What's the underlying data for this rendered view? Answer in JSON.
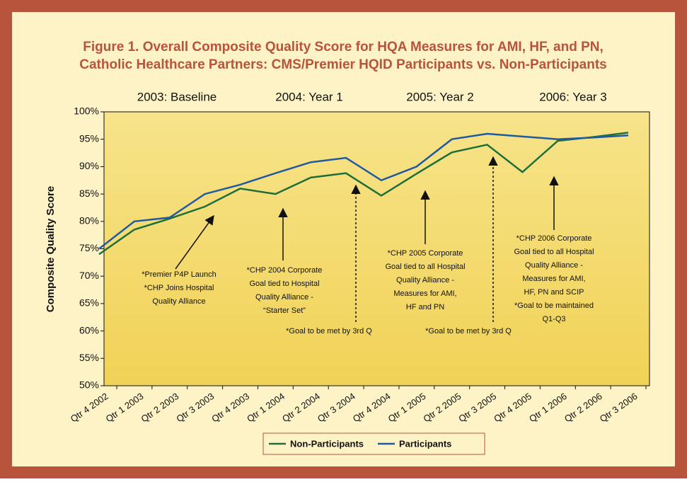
{
  "chart_data": {
    "type": "line",
    "title": [
      "Figure 1. Overall Composite Quality Score for HQA Measures for AMI, HF, and PN,",
      "Catholic Healthcare Partners: CMS/Premier HQID Participants vs. Non-Participants"
    ],
    "periods": [
      "2003: Baseline",
      "2004: Year 1",
      "2005: Year 2",
      "2006: Year 3"
    ],
    "y_label": "Composite Quality Score",
    "categories": [
      "Qtr 4 2002",
      "Qtr 1 2003",
      "Qtr 2 2003",
      "Qtr 3 2003",
      "Qtr 4 2003",
      "Qtr 1 2004",
      "Qtr 2 2004",
      "Qtr 3 2004",
      "Qtr 4 2004",
      "Qtr 1 2005",
      "Qtr 2 2005",
      "Qtr 3 2005",
      "Qtr 4 2005",
      "Qtr 1 2006",
      "Qtr 2 2006",
      "Qtr 3 2006"
    ],
    "series": [
      {
        "name": "Non-Participants",
        "color": "#1e6e3a",
        "values": [
          74,
          78.5,
          80.5,
          82.7,
          86,
          85,
          88,
          88.8,
          84.7,
          88.7,
          92.6,
          94,
          89,
          94.7,
          95.4,
          96.2
        ]
      },
      {
        "name": "Participants",
        "color": "#1f5aa0",
        "values": [
          75,
          80,
          80.7,
          85,
          86.7,
          88.8,
          90.8,
          91.6,
          87.5,
          90,
          95,
          96,
          95.5,
          95,
          95.3,
          95.7
        ]
      }
    ],
    "ylim": [
      50,
      100
    ],
    "yticks": [
      {
        "value": 50,
        "label": "50%"
      },
      {
        "value": 55,
        "label": "55%"
      },
      {
        "value": 60,
        "label": "60%"
      },
      {
        "value": 65,
        "label": "65%"
      },
      {
        "value": 70,
        "label": "70%"
      },
      {
        "value": 75,
        "label": "75%"
      },
      {
        "value": 80,
        "label": "80%"
      },
      {
        "value": 85,
        "label": "85%"
      },
      {
        "value": 90,
        "label": "90%"
      },
      {
        "value": 95,
        "label": "95%"
      },
      {
        "value": 100,
        "label": "100%"
      }
    ],
    "grid": false,
    "legend": "bottom",
    "annotations": [
      [
        "*Premier P4P Launch",
        "*CHP Joins Hospital",
        "Quality Alliance"
      ],
      [
        "*CHP 2004 Corporate",
        "Goal tied to Hospital",
        "Quality Alliance -",
        "“Starter Set”"
      ],
      [
        "*Goal to be met by 3rd Q"
      ],
      [
        "*CHP 2005 Corporate",
        "Goal tied to all Hospital",
        "Quality Alliance -",
        "Measures for AMI,",
        "HF and PN"
      ],
      [
        "*Goal to be met by 3rd Q"
      ],
      [
        "*CHP 2006 Corporate",
        "Goal tied to all Hospital",
        "Quality Alliance -",
        "Measures for AMI,",
        "HF, PN and SCIP",
        "*Goal to be maintained",
        "Q1-Q3"
      ]
    ]
  }
}
